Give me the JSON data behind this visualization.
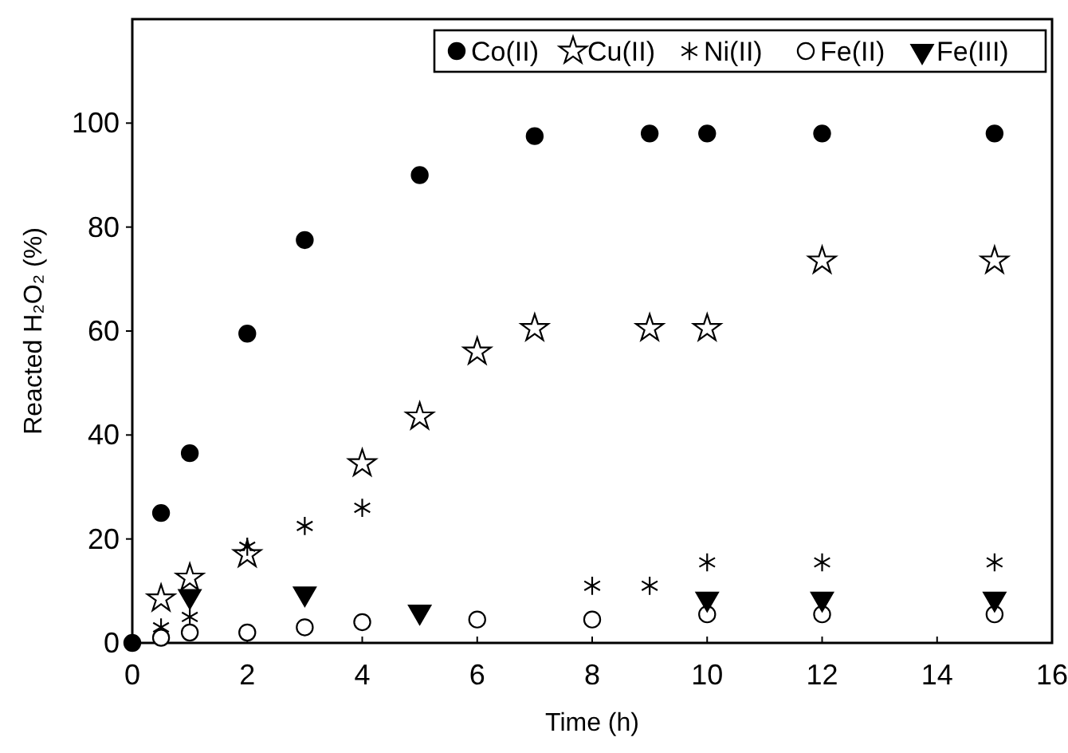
{
  "chart_data": {
    "type": "scatter",
    "xlabel": "Time (h)",
    "ylabel": "Reacted H₂O₂ (%)",
    "xlim": [
      0,
      16
    ],
    "xticks": [
      0,
      2,
      4,
      6,
      8,
      10,
      12,
      14,
      16
    ],
    "ylim": [
      0,
      120
    ],
    "yticks": [
      0,
      20,
      40,
      60,
      80,
      100
    ],
    "legend": "top right",
    "grid": false,
    "series": [
      {
        "name": "Co(II)",
        "color": "#000000",
        "marker": "circle",
        "x": [
          0,
          0.5,
          1,
          2,
          3,
          5,
          7,
          9,
          10,
          12,
          15
        ],
        "values": [
          0,
          25,
          36.5,
          59.5,
          77.5,
          90,
          97.5,
          98,
          98,
          98,
          98
        ]
      },
      {
        "name": "Cu(II)",
        "color": "#000000",
        "marker": "star",
        "x": [
          0.5,
          1,
          2,
          4,
          5,
          6,
          7,
          9,
          10,
          12,
          15
        ],
        "values": [
          8.5,
          12.5,
          17,
          34.5,
          43.5,
          56,
          60.5,
          60.5,
          60.5,
          73.5,
          73.5
        ]
      },
      {
        "name": "Ni(II)",
        "color": "#000000",
        "marker": "cross",
        "x": [
          0.5,
          1,
          2,
          3,
          4,
          8,
          9,
          10,
          12,
          15
        ],
        "values": [
          3,
          5,
          18.5,
          22.5,
          26,
          11,
          11,
          15.5,
          15.5,
          15.5
        ]
      },
      {
        "name": "Fe(II)",
        "color": "#000000",
        "marker": "circle",
        "x": [
          0.5,
          1,
          2,
          3,
          4,
          6,
          8,
          10,
          12,
          15
        ],
        "values": [
          1,
          2,
          2,
          3,
          4,
          4.5,
          4.5,
          5.5,
          5.5,
          5.5
        ]
      },
      {
        "name": "Fe(III)",
        "color": "#000000",
        "marker": "triangle",
        "x": [
          1,
          3,
          5,
          10,
          12,
          15
        ],
        "values": [
          9,
          9.5,
          6,
          8.5,
          8.5,
          8.5
        ]
      }
    ]
  }
}
